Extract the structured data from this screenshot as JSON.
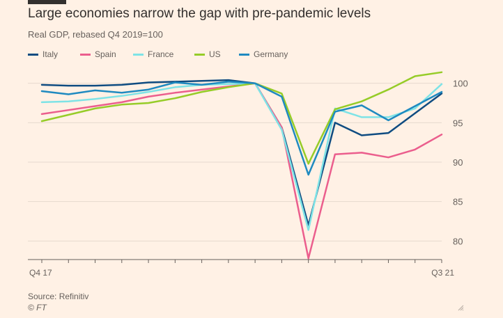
{
  "title": "Large economies narrow the gap with pre-pandemic levels",
  "subtitle": "Real GDP, rebased Q4 2019=100",
  "source": "Source: Refinitiv",
  "credit": "© FT",
  "colors": {
    "background": "#fff1e5",
    "gridline": "#e6d9ce",
    "axis": "#66605c",
    "text": "#33302e"
  },
  "icons": {
    "resize": "resize-corner-icon"
  },
  "chart_data": {
    "type": "line",
    "x": [
      "Q4 17",
      "Q1 18",
      "Q2 18",
      "Q3 18",
      "Q4 18",
      "Q1 19",
      "Q2 19",
      "Q3 19",
      "Q4 19",
      "Q1 20",
      "Q2 20",
      "Q3 20",
      "Q4 20",
      "Q1 21",
      "Q2 21",
      "Q3 21"
    ],
    "x_tick_labels": [
      "Q4 17",
      "Q3 21"
    ],
    "y_ticks": [
      80,
      85,
      90,
      95,
      100
    ],
    "ylim": [
      78,
      102
    ],
    "grid": true,
    "legend_position": "top-left",
    "series": [
      {
        "name": "Italy",
        "color": "#0f4c81",
        "values": [
          99.8,
          99.7,
          99.7,
          99.8,
          100.1,
          100.2,
          100.3,
          100.4,
          100.0,
          94.4,
          82.0,
          95.0,
          93.4,
          93.7,
          96.2,
          98.7
        ]
      },
      {
        "name": "Spain",
        "color": "#eb5e8d",
        "values": [
          96.1,
          96.6,
          97.1,
          97.6,
          98.3,
          98.8,
          99.2,
          99.6,
          100.0,
          94.4,
          77.8,
          91.0,
          91.2,
          90.6,
          91.6,
          93.5
        ]
      },
      {
        "name": "France",
        "color": "#7ee3e6",
        "values": [
          97.6,
          97.7,
          98.0,
          98.4,
          98.9,
          99.5,
          99.8,
          99.9,
          100.0,
          94.1,
          81.4,
          96.8,
          95.7,
          95.7,
          96.8,
          99.9
        ]
      },
      {
        "name": "US",
        "color": "#96cc28",
        "values": [
          95.2,
          96.0,
          96.8,
          97.3,
          97.5,
          98.1,
          98.9,
          99.5,
          100.0,
          98.7,
          89.8,
          96.7,
          97.7,
          99.2,
          100.9,
          101.4
        ]
      },
      {
        "name": "Germany",
        "color": "#1f8ac0",
        "values": [
          99.0,
          98.6,
          99.1,
          98.8,
          99.2,
          100.1,
          99.8,
          100.2,
          100.0,
          98.3,
          88.4,
          96.4,
          97.2,
          95.3,
          97.1,
          98.9
        ]
      }
    ]
  }
}
